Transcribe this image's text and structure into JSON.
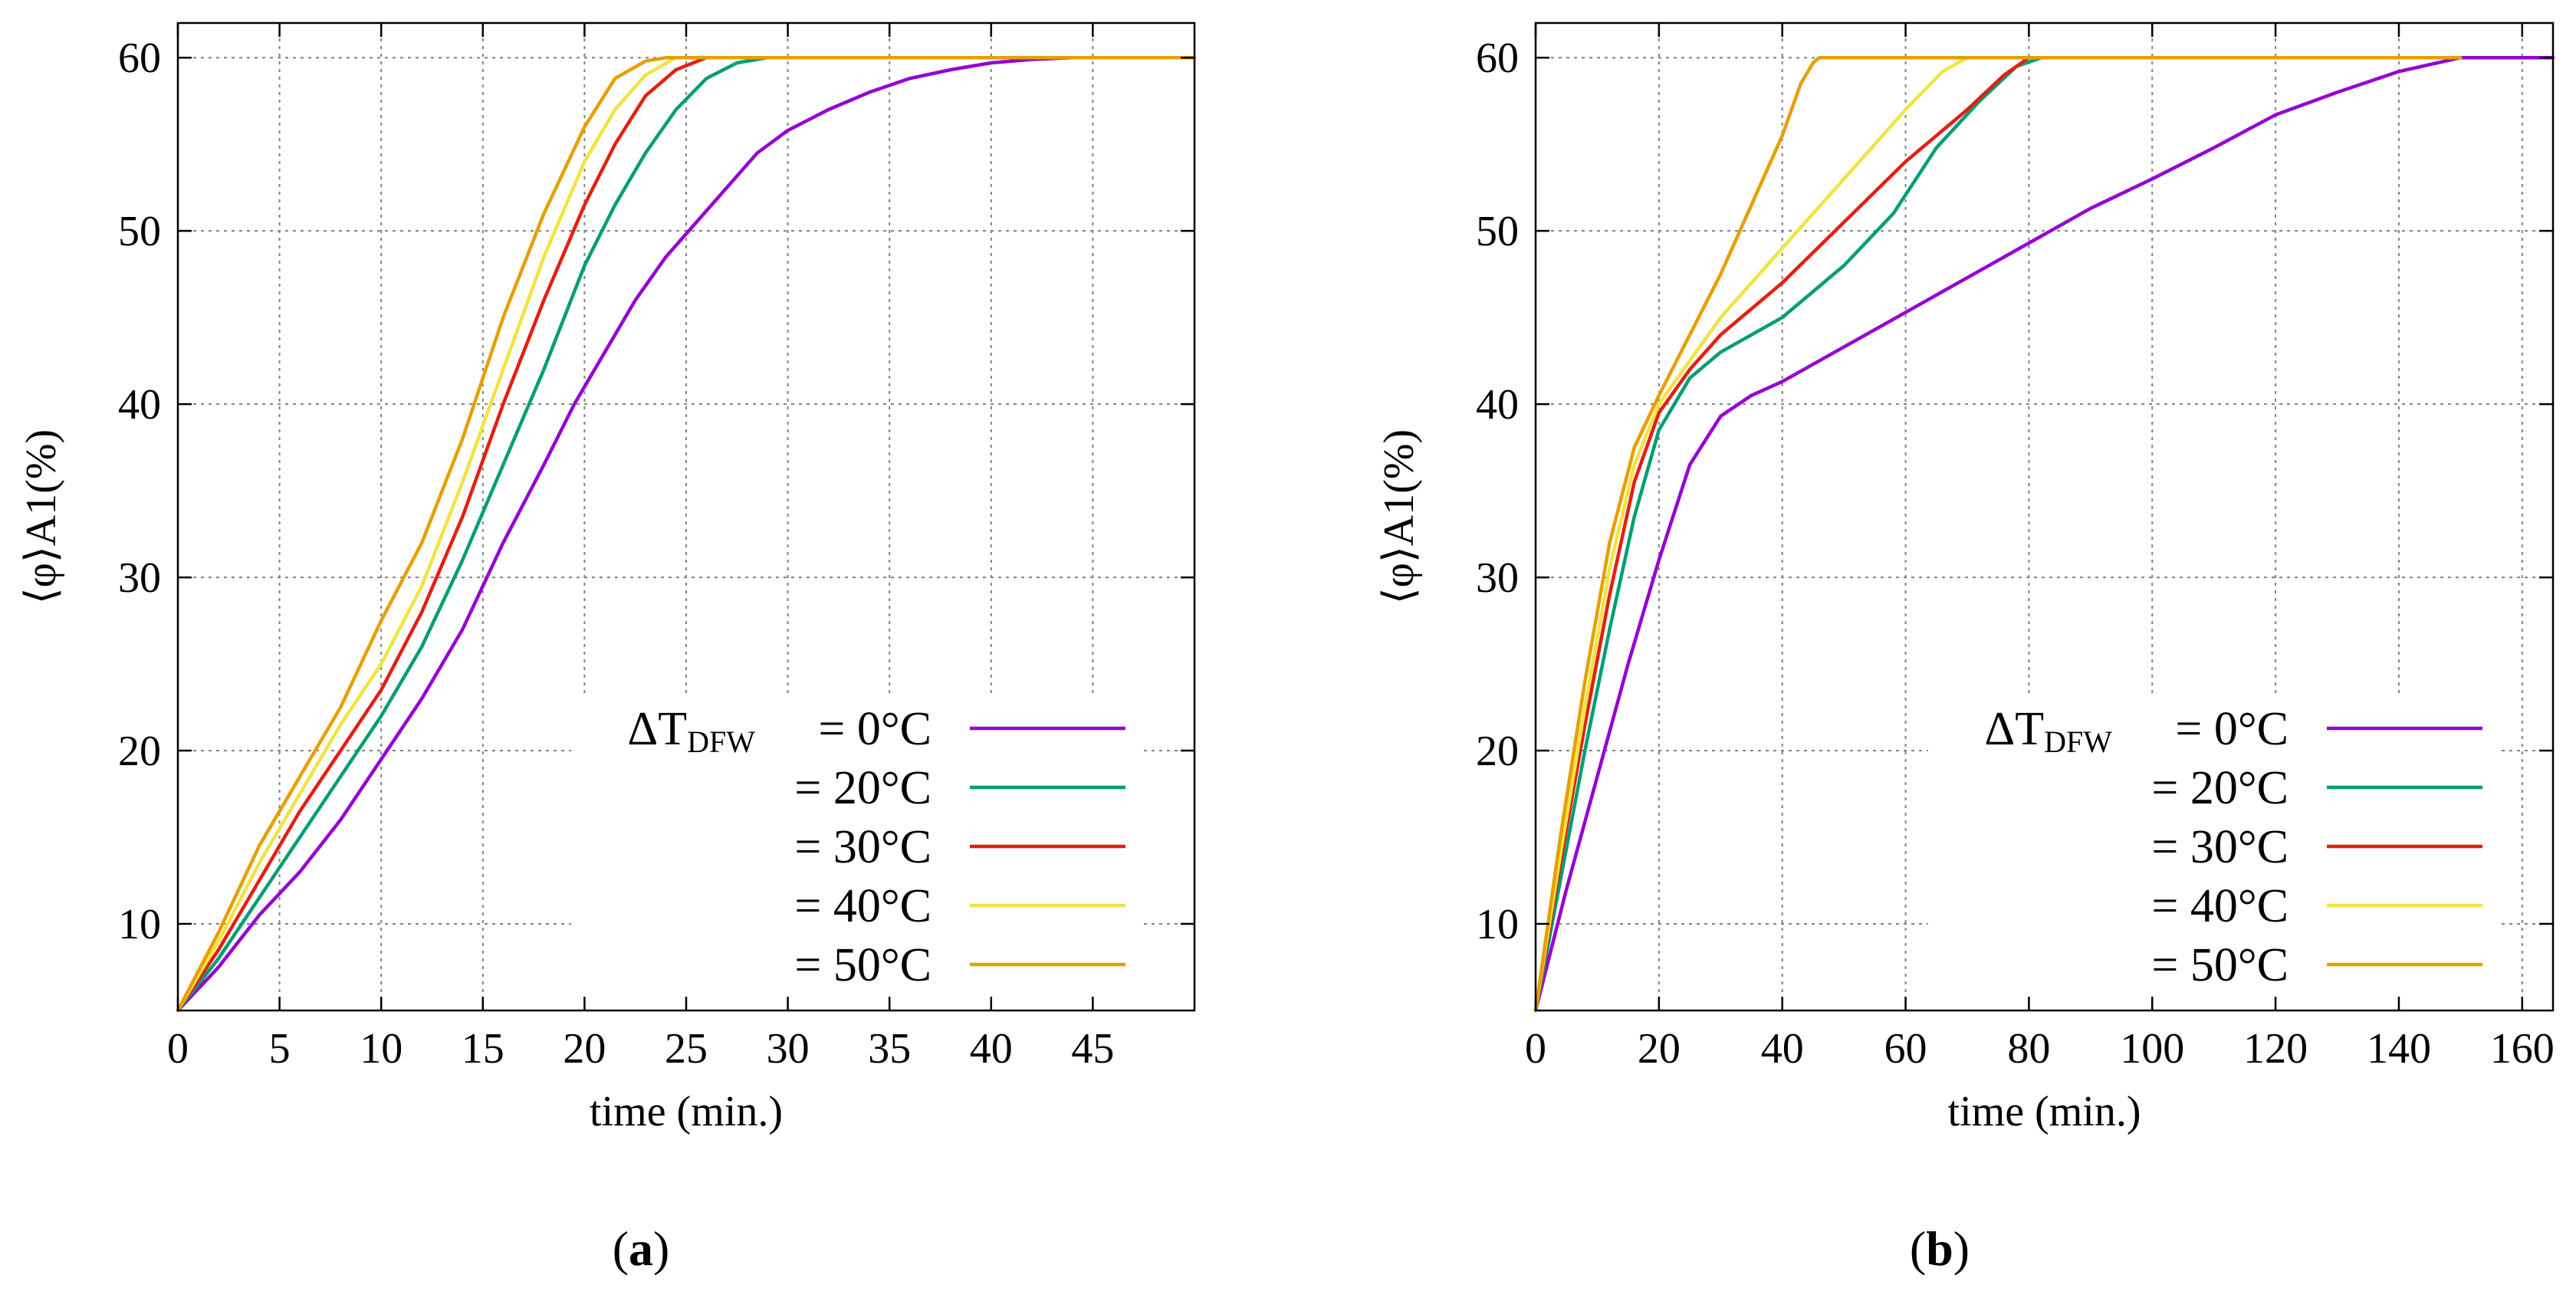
{
  "colors": {
    "s0": "#9400d3",
    "s20": "#009e73",
    "s30": "#e51e10",
    "s40": "#f0e442",
    "s50": "#e69f00"
  },
  "chart_data": [
    {
      "id": "a",
      "type": "line",
      "panel_label": "a",
      "xlabel": "time (min.)",
      "ylabel": "⟨φ⟩A1(%)",
      "xlim": [
        0,
        50
      ],
      "ylim": [
        5,
        62
      ],
      "xticks": [
        0,
        5,
        10,
        15,
        20,
        25,
        30,
        35,
        40,
        45
      ],
      "yticks": [
        10,
        20,
        30,
        40,
        50,
        60
      ],
      "grid": true,
      "legend_placement": "bottom-right",
      "legend_lead": "ΔT",
      "legend_sub": "DFW",
      "series": [
        {
          "name": "= 0°C",
          "color_key": "s0",
          "x": [
            0,
            2,
            4,
            6,
            8,
            10,
            12,
            14,
            16,
            18,
            19.5,
            21,
            22.5,
            24,
            25.5,
            27,
            28.5,
            30,
            32,
            34,
            36,
            38,
            40,
            42,
            44,
            46,
            50
          ],
          "y": [
            5,
            7.5,
            10.5,
            13,
            16,
            19.5,
            23,
            27,
            32,
            36.5,
            40,
            43,
            46,
            48.5,
            50.5,
            52.5,
            54.5,
            55.8,
            57,
            58,
            58.8,
            59.3,
            59.7,
            59.9,
            60,
            60,
            60
          ]
        },
        {
          "name": "= 20°C",
          "color_key": "s20",
          "x": [
            0,
            2,
            4,
            6,
            8,
            10,
            12,
            14,
            16,
            18,
            20,
            21.5,
            23,
            24.5,
            26,
            27.5,
            29,
            30,
            50
          ],
          "y": [
            5,
            8,
            11.5,
            15,
            18.5,
            22,
            26,
            31,
            36.5,
            42,
            48,
            51.5,
            54.5,
            57,
            58.8,
            59.7,
            60,
            60,
            60
          ]
        },
        {
          "name": "= 30°C",
          "color_key": "s30",
          "x": [
            0,
            2,
            4,
            6,
            8,
            10,
            12,
            14,
            16,
            18,
            20,
            21.5,
            23,
            24.5,
            26,
            27,
            50
          ],
          "y": [
            5,
            8.5,
            12.5,
            16.5,
            20,
            23.5,
            28,
            33.5,
            40,
            46,
            51.5,
            55,
            57.8,
            59.3,
            60,
            60,
            60
          ]
        },
        {
          "name": "= 40°C",
          "color_key": "s40",
          "x": [
            0,
            2,
            4,
            6,
            8,
            10,
            12,
            14,
            16,
            18,
            20,
            21.5,
            23,
            24.5,
            25.5,
            50
          ],
          "y": [
            5,
            9,
            13.5,
            17.5,
            21.5,
            25,
            29.5,
            35.5,
            42,
            48.5,
            54,
            57,
            59,
            60,
            60,
            60
          ]
        },
        {
          "name": "= 50°C",
          "color_key": "s50",
          "x": [
            0,
            2,
            4,
            6,
            8,
            10,
            12,
            14,
            16,
            18,
            20,
            21.5,
            23,
            24,
            50
          ],
          "y": [
            5,
            9.5,
            14.5,
            18.5,
            22.5,
            27.5,
            32,
            38,
            45,
            51,
            56,
            58.8,
            59.8,
            60,
            60
          ]
        }
      ]
    },
    {
      "id": "b",
      "type": "line",
      "panel_label": "b",
      "xlabel": "time (min.)",
      "ylabel": "⟨φ⟩A1(%)",
      "xlim": [
        0,
        165
      ],
      "ylim": [
        5,
        62
      ],
      "xticks": [
        0,
        20,
        40,
        60,
        80,
        100,
        120,
        140,
        160
      ],
      "yticks": [
        10,
        20,
        30,
        40,
        50,
        60
      ],
      "grid": true,
      "legend_placement": "bottom-right",
      "legend_lead": "ΔT",
      "legend_sub": "DFW",
      "series": [
        {
          "name": "= 0°C",
          "color_key": "s0",
          "x": [
            0,
            5,
            10,
            15,
            20,
            25,
            30,
            35,
            40,
            50,
            60,
            70,
            80,
            90,
            100,
            110,
            120,
            130,
            140,
            150,
            155,
            165
          ],
          "y": [
            5,
            12,
            18.5,
            25,
            31,
            36.5,
            39.3,
            40.5,
            41.3,
            43.3,
            45.3,
            47.3,
            49.3,
            51.3,
            53,
            54.8,
            56.7,
            58,
            59.2,
            60,
            60,
            60
          ]
        },
        {
          "name": "= 20°C",
          "color_key": "s20",
          "x": [
            0,
            4,
            8,
            12,
            16,
            20,
            25,
            30,
            40,
            50,
            58,
            65,
            72,
            78,
            82,
            150
          ],
          "y": [
            5,
            12.5,
            20,
            27,
            33.5,
            38.5,
            41.5,
            43,
            45,
            48,
            51,
            54.8,
            57.5,
            59.5,
            60,
            60
          ]
        },
        {
          "name": "= 30°C",
          "color_key": "s30",
          "x": [
            0,
            4,
            8,
            12,
            16,
            20,
            25,
            30,
            40,
            50,
            60,
            70,
            76,
            80,
            150
          ],
          "y": [
            5,
            13.5,
            21.5,
            29,
            35.5,
            39.5,
            42,
            44,
            47,
            50.5,
            54,
            57,
            59,
            60,
            60
          ]
        },
        {
          "name": "= 40°C",
          "color_key": "s40",
          "x": [
            0,
            4,
            8,
            12,
            16,
            20,
            25,
            30,
            40,
            50,
            60,
            66,
            70,
            150
          ],
          "y": [
            5,
            14,
            22.5,
            30.5,
            36.5,
            40,
            42.5,
            45,
            49,
            53,
            57,
            59.2,
            60,
            60
          ]
        },
        {
          "name": "= 50°C",
          "color_key": "s50",
          "x": [
            0,
            4,
            8,
            12,
            16,
            20,
            25,
            30,
            35,
            40,
            43,
            45,
            46,
            150
          ],
          "y": [
            5,
            15,
            24,
            32,
            37.5,
            40.5,
            44,
            47.5,
            51.5,
            55.5,
            58.5,
            59.7,
            60,
            60
          ]
        }
      ]
    }
  ]
}
